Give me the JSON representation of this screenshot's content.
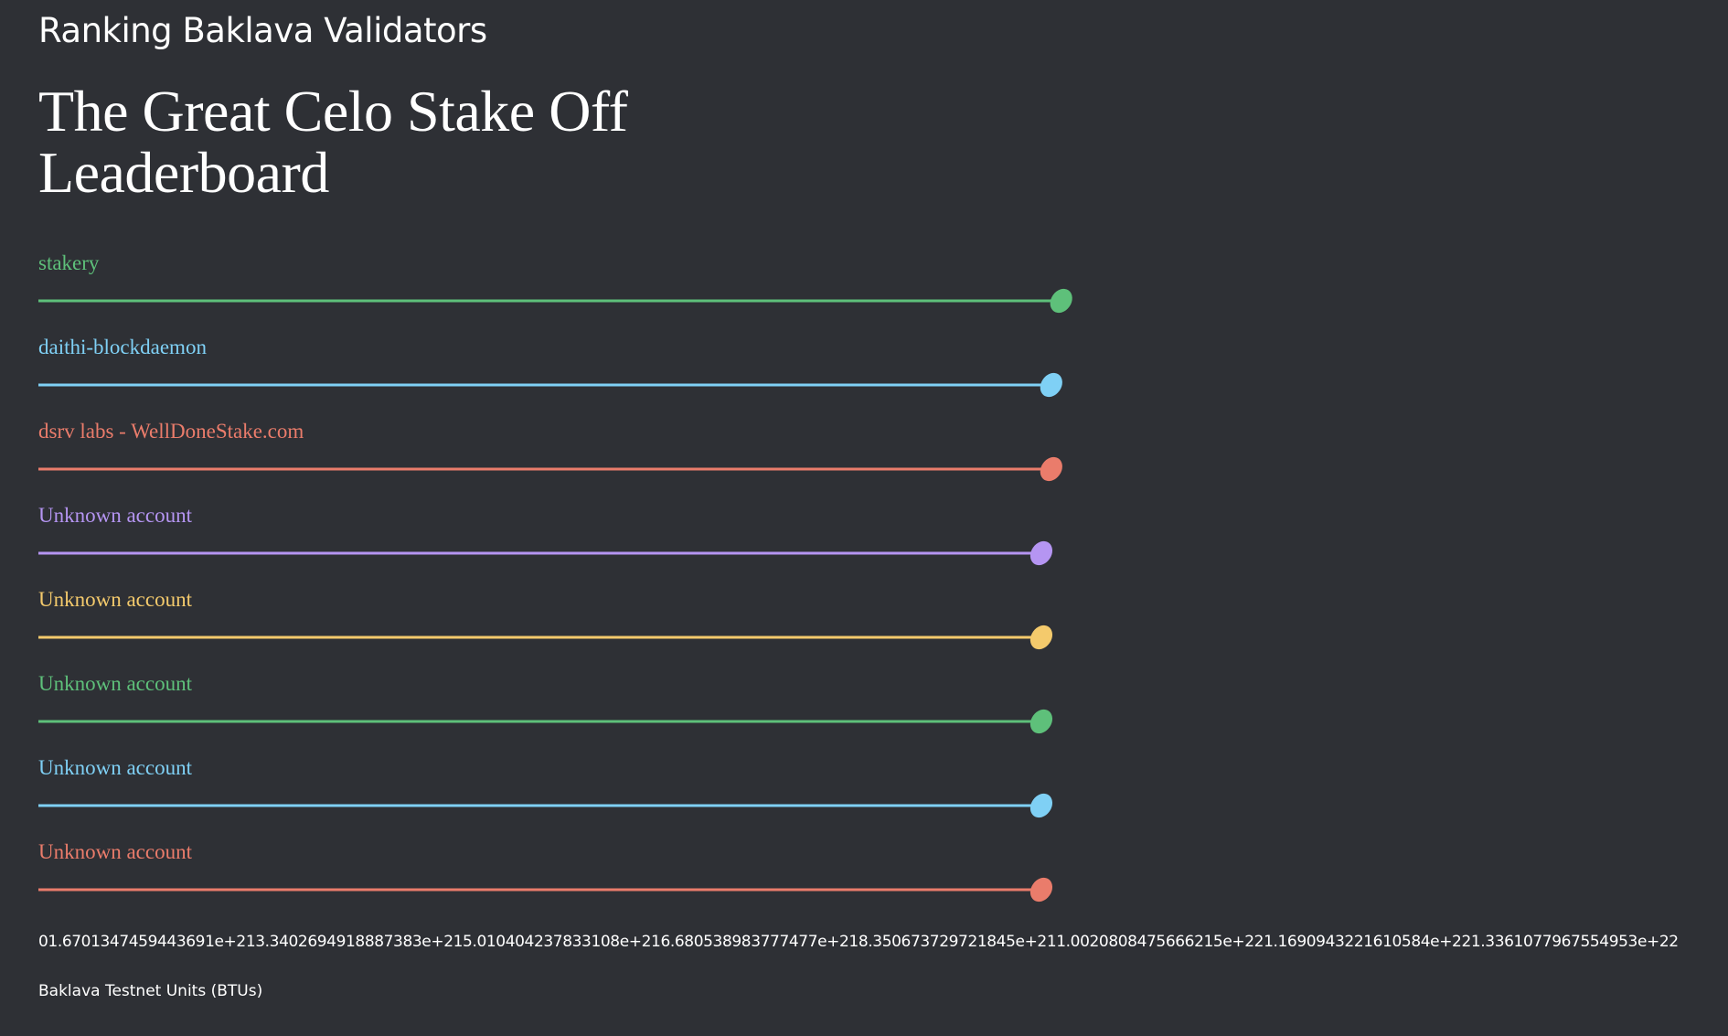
{
  "header": {
    "subtitle": "Ranking Baklava Validators",
    "title_line1": "The Great Celo Stake Off",
    "title_line2": "Leaderboard"
  },
  "chart_data": {
    "type": "bar",
    "title": "The Great Celo Stake Off Leaderboard",
    "subtitle": "Ranking Baklava Validators",
    "xlabel": "Baklava Testnet Units (BTUs)",
    "ylabel": "",
    "xlim": [
      0,
      1.3361077967554953e+22
    ],
    "x_tick_labels": [
      "0",
      "1.6701347459443691e+21",
      "3.3402694918887383e+21",
      "5.010404237833108e+21",
      "6.680538983777477e+21",
      "8.350673729721845e+21",
      "1.0020808475666215e+22",
      "1.1690943221610584e+22",
      "1.3361077967554953e+22"
    ],
    "categories": [
      "stakery",
      "daithi-blockdaemon",
      "dsrv labs - WellDoneStake.com",
      "Unknown account",
      "Unknown account",
      "Unknown account",
      "Unknown account",
      "Unknown account"
    ],
    "values": [
      1.338e+22,
      1.325e+22,
      1.325e+22,
      1.312e+22,
      1.312e+22,
      1.312e+22,
      1.312e+22,
      1.312e+22
    ],
    "colors": [
      "#5ec07a",
      "#7fd0f5",
      "#ea7c6b",
      "#b595f2",
      "#f4ca6c",
      "#5ec07a",
      "#7fd0f5",
      "#ea7c6b"
    ],
    "grid": false,
    "legend": "none"
  }
}
